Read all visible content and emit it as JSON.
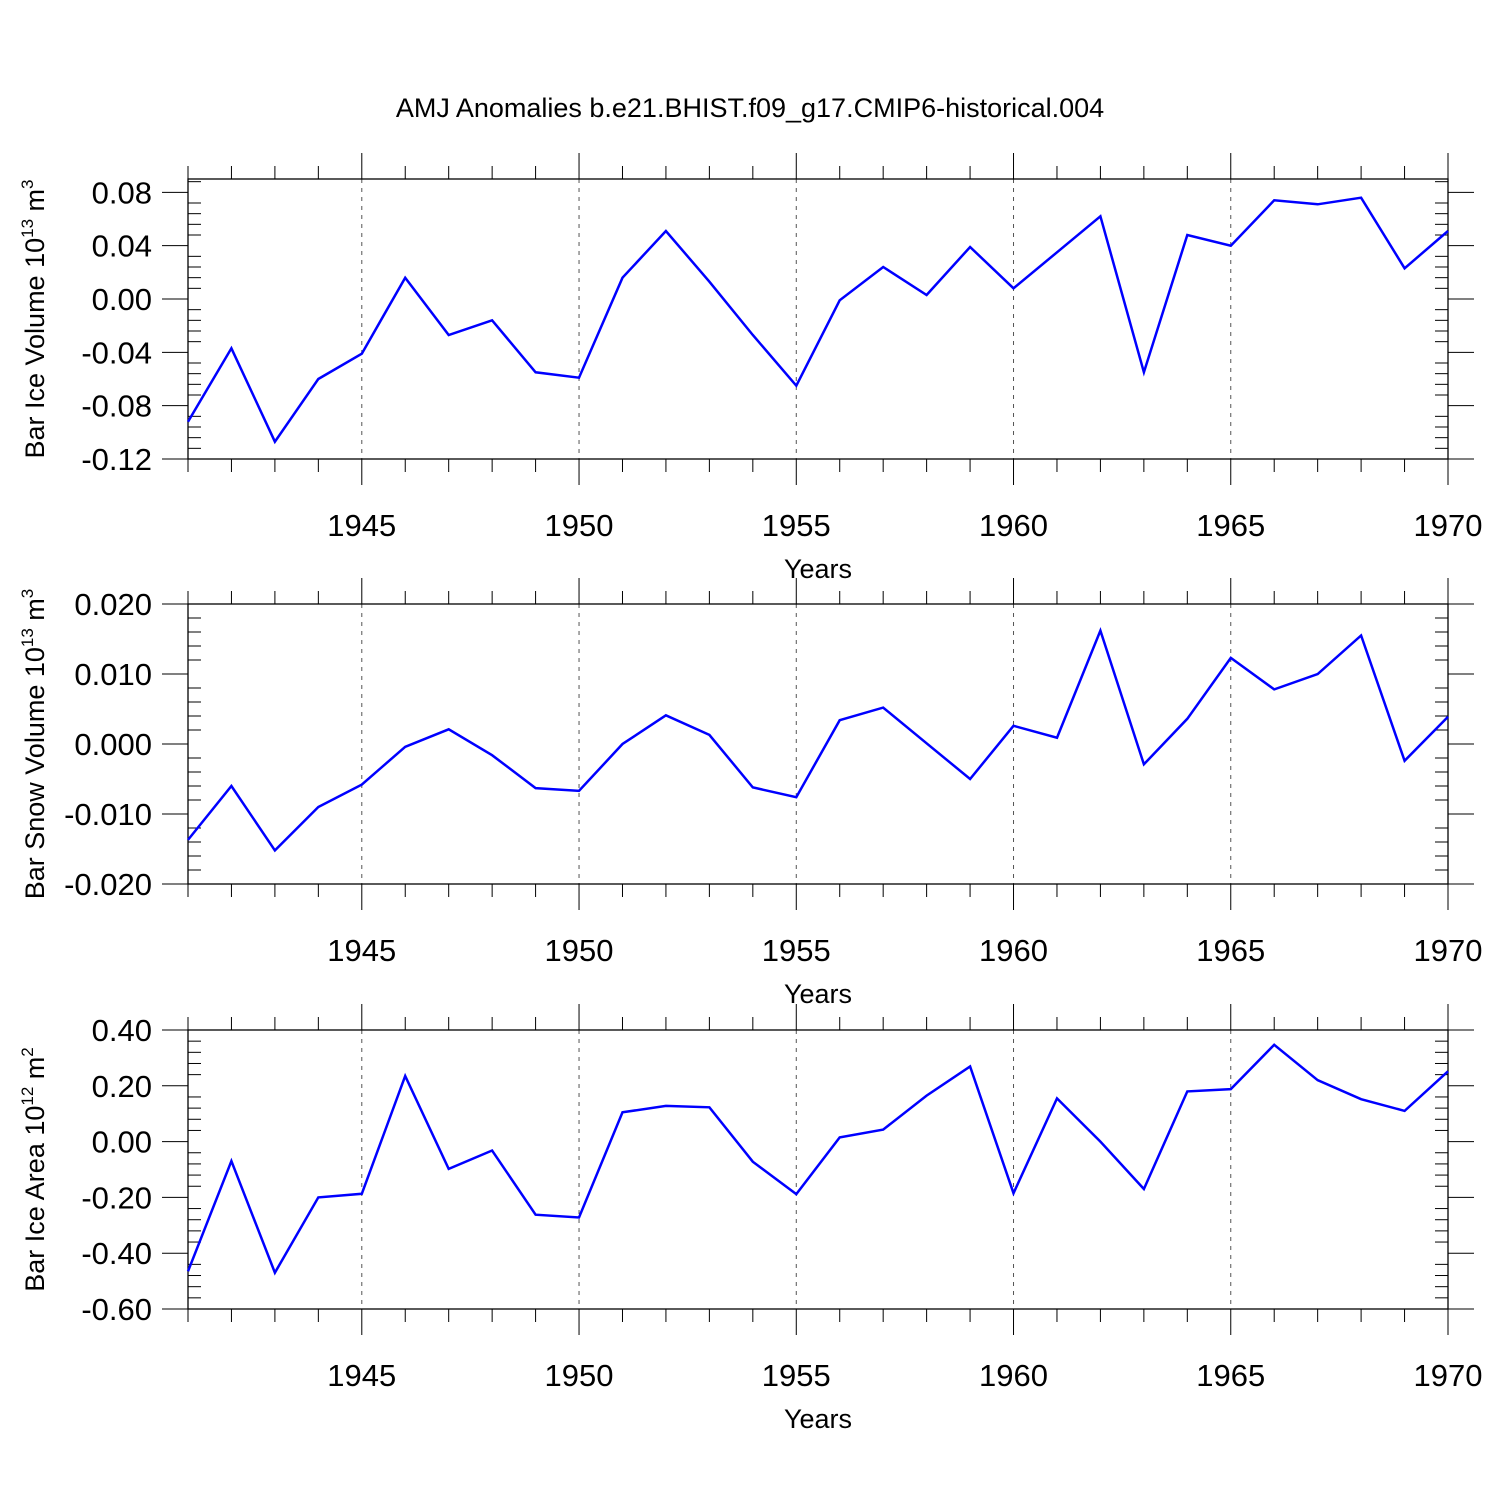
{
  "title": "AMJ Anomalies b.e21.BHIST.f09_g17.CMIP6-historical.004",
  "colors": {
    "line": "#0000ff",
    "axis": "#000000",
    "grid": "#555555"
  },
  "chart_data": [
    {
      "type": "line",
      "ylabel_parts": [
        "Bar Ice Volume 10",
        "13",
        " m",
        "3"
      ],
      "xlabel": "Years",
      "xlim": [
        1941,
        1970
      ],
      "ylim": [
        -0.12,
        0.09
      ],
      "yticks": [
        -0.12,
        -0.08,
        -0.04,
        0.0,
        0.04,
        0.08
      ],
      "ytick_labels": [
        "-0.12",
        "-0.08",
        "-0.04",
        "0.00",
        "0.04",
        "0.08"
      ],
      "xticks": [
        1945,
        1950,
        1955,
        1960,
        1965,
        1970
      ],
      "xtick_labels": [
        "1945",
        "1950",
        "1955",
        "1960",
        "1965",
        "1970"
      ],
      "grid": "vertical dashed at major x ticks",
      "series": [
        {
          "x": [
            1941,
            1942,
            1943,
            1944,
            1945,
            1946,
            1947,
            1948,
            1949,
            1950,
            1951,
            1952,
            1953,
            1954,
            1955,
            1956,
            1957,
            1958,
            1959,
            1960,
            1961,
            1962,
            1963,
            1964,
            1965,
            1966,
            1967,
            1968,
            1969,
            1970
          ],
          "values": [
            -0.092,
            -0.037,
            -0.107,
            -0.06,
            -0.041,
            0.016,
            -0.027,
            -0.016,
            -0.055,
            -0.059,
            0.016,
            0.051,
            0.013,
            -0.027,
            -0.065,
            -0.001,
            0.024,
            0.003,
            0.039,
            0.008,
            0.035,
            0.062,
            -0.055,
            0.048,
            0.04,
            0.074,
            0.071,
            0.076,
            0.023,
            0.051
          ]
        }
      ]
    },
    {
      "type": "line",
      "ylabel_parts": [
        "Bar Snow Volume 10",
        "13",
        " m",
        "3"
      ],
      "xlabel": "Years",
      "xlim": [
        1941,
        1970
      ],
      "ylim": [
        -0.02,
        0.02
      ],
      "yticks": [
        -0.02,
        -0.01,
        0.0,
        0.01,
        0.02
      ],
      "ytick_labels": [
        "-0.020",
        "-0.010",
        "0.000",
        "0.010",
        "0.020"
      ],
      "xticks": [
        1945,
        1950,
        1955,
        1960,
        1965,
        1970
      ],
      "xtick_labels": [
        "1945",
        "1950",
        "1955",
        "1960",
        "1965",
        "1970"
      ],
      "grid": "vertical dashed at major x ticks",
      "series": [
        {
          "x": [
            1941,
            1942,
            1943,
            1944,
            1945,
            1946,
            1947,
            1948,
            1949,
            1950,
            1951,
            1952,
            1953,
            1954,
            1955,
            1956,
            1957,
            1958,
            1959,
            1960,
            1961,
            1962,
            1963,
            1964,
            1965,
            1966,
            1967,
            1968,
            1969,
            1970
          ],
          "values": [
            -0.0137,
            -0.006,
            -0.0152,
            -0.009,
            -0.0058,
            -0.0004,
            0.0021,
            -0.0016,
            -0.0063,
            -0.0067,
            0.0,
            0.0041,
            0.0013,
            -0.0062,
            -0.0076,
            0.0034,
            0.0052,
            0.0001,
            -0.005,
            0.0026,
            0.0009,
            0.0162,
            -0.0029,
            0.0036,
            0.0123,
            0.0078,
            0.01,
            0.0155,
            -0.0024,
            0.0039
          ]
        }
      ]
    },
    {
      "type": "line",
      "ylabel_parts": [
        "Bar Ice Area 10",
        "12",
        " m",
        "2"
      ],
      "xlabel": "Years",
      "xlim": [
        1941,
        1970
      ],
      "ylim": [
        -0.6,
        0.4
      ],
      "yticks": [
        -0.6,
        -0.4,
        -0.2,
        0.0,
        0.2,
        0.4
      ],
      "ytick_labels": [
        "-0.60",
        "-0.40",
        "-0.20",
        "0.00",
        "0.20",
        "0.40"
      ],
      "xticks": [
        1945,
        1950,
        1955,
        1960,
        1965,
        1970
      ],
      "xtick_labels": [
        "1945",
        "1950",
        "1955",
        "1960",
        "1965",
        "1970"
      ],
      "grid": "vertical dashed at major x ticks",
      "series": [
        {
          "x": [
            1941,
            1942,
            1943,
            1944,
            1945,
            1946,
            1947,
            1948,
            1949,
            1950,
            1951,
            1952,
            1953,
            1954,
            1955,
            1956,
            1957,
            1958,
            1959,
            1960,
            1961,
            1962,
            1963,
            1964,
            1965,
            1966,
            1967,
            1968,
            1969,
            1970
          ],
          "values": [
            -0.465,
            -0.07,
            -0.47,
            -0.2,
            -0.187,
            0.235,
            -0.098,
            -0.032,
            -0.262,
            -0.272,
            0.105,
            0.128,
            0.123,
            -0.072,
            -0.188,
            0.015,
            0.043,
            0.165,
            0.269,
            -0.185,
            0.155,
            0.0,
            -0.17,
            0.18,
            0.188,
            0.347,
            0.22,
            0.152,
            0.11,
            0.252
          ]
        }
      ]
    }
  ]
}
